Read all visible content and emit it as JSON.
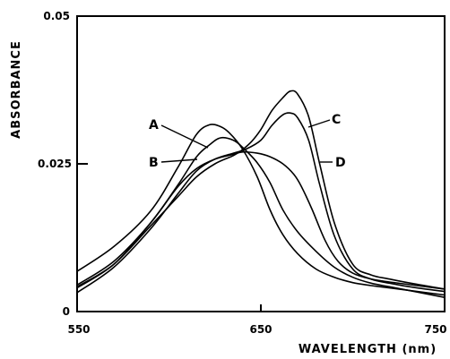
{
  "chart_data": {
    "type": "line",
    "title": "",
    "xlabel": "WAVELENGTH (nm)",
    "ylabel": "ABSORBANCE",
    "xlim": [
      550,
      750
    ],
    "ylim": [
      0,
      0.05
    ],
    "x_ticks": [
      {
        "value": 550,
        "label": "550"
      },
      {
        "value": 650,
        "label": "650"
      },
      {
        "value": 750,
        "label": "750"
      }
    ],
    "y_ticks": [
      {
        "value": 0,
        "label": "0"
      },
      {
        "value": 0.025,
        "label": "0.025"
      },
      {
        "value": 0.05,
        "label": "0.05"
      }
    ],
    "grid": false,
    "series": [
      {
        "name": "A",
        "x": [
          550,
          570,
          590,
          605,
          615,
          622,
          628,
          633,
          640,
          648,
          655,
          662,
          670,
          680,
          690,
          700,
          710,
          720,
          735,
          750
        ],
        "y": [
          0.0068,
          0.011,
          0.017,
          0.0245,
          0.03,
          0.0316,
          0.0313,
          0.0302,
          0.0275,
          0.0228,
          0.0172,
          0.013,
          0.0098,
          0.0072,
          0.0058,
          0.0049,
          0.0044,
          0.004,
          0.0034,
          0.0028
        ]
      },
      {
        "name": "B",
        "x": [
          550,
          570,
          590,
          605,
          615,
          622,
          628,
          635,
          640,
          648,
          655,
          662,
          670,
          680,
          690,
          700,
          710,
          720,
          735,
          750
        ],
        "y": [
          0.0045,
          0.0085,
          0.015,
          0.0215,
          0.0262,
          0.0282,
          0.0294,
          0.029,
          0.0278,
          0.0252,
          0.0218,
          0.0172,
          0.0135,
          0.0102,
          0.0075,
          0.0058,
          0.0048,
          0.0042,
          0.0033,
          0.0024
        ]
      },
      {
        "name": "C",
        "x": [
          550,
          570,
          590,
          605,
          615,
          625,
          635,
          642,
          650,
          656,
          662,
          666,
          670,
          676,
          682,
          690,
          700,
          710,
          720,
          735,
          750
        ],
        "y": [
          0.0032,
          0.0075,
          0.014,
          0.02,
          0.0238,
          0.0258,
          0.0268,
          0.0275,
          0.029,
          0.0315,
          0.0333,
          0.0336,
          0.0328,
          0.029,
          0.0215,
          0.0128,
          0.0072,
          0.0055,
          0.0048,
          0.004,
          0.0034
        ]
      },
      {
        "name": "D",
        "x": [
          550,
          570,
          590,
          605,
          615,
          625,
          635,
          640,
          645,
          650,
          656,
          662,
          666,
          670,
          676,
          682,
          690,
          700,
          710,
          720,
          735,
          750
        ],
        "y": [
          0.0042,
          0.008,
          0.0145,
          0.0195,
          0.0228,
          0.025,
          0.0264,
          0.0274,
          0.0288,
          0.0308,
          0.034,
          0.0362,
          0.0373,
          0.0368,
          0.033,
          0.025,
          0.015,
          0.008,
          0.0062,
          0.0055,
          0.0046,
          0.0038
        ]
      },
      {
        "name": "",
        "x": [
          550,
          570,
          590,
          605,
          615,
          625,
          635,
          640,
          648,
          655,
          662,
          668,
          672,
          678,
          685,
          692,
          700,
          710,
          720,
          735,
          750
        ],
        "y": [
          0.004,
          0.008,
          0.015,
          0.0212,
          0.0242,
          0.0258,
          0.0266,
          0.027,
          0.0268,
          0.0262,
          0.025,
          0.0232,
          0.0212,
          0.0172,
          0.012,
          0.0085,
          0.0065,
          0.0055,
          0.005,
          0.0044,
          0.0038
        ]
      }
    ],
    "labels": [
      "A",
      "B",
      "C",
      "D"
    ]
  }
}
